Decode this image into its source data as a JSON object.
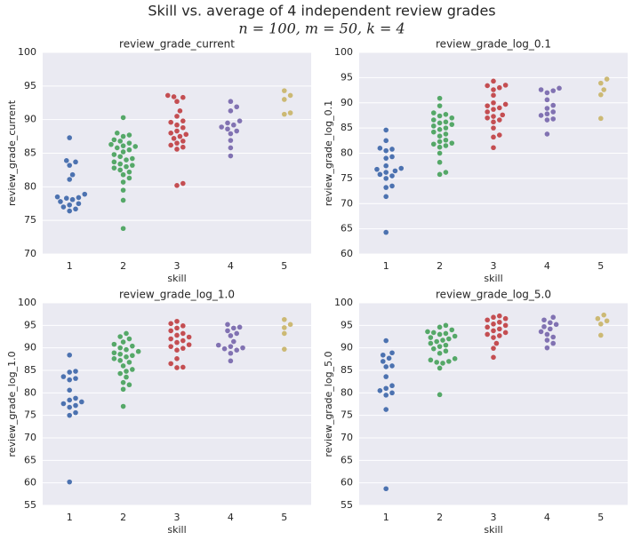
{
  "suptitle": "Skill vs. average of 4 independent review grades",
  "subtitle": "n = 100, m = 50, k = 4",
  "chart_data": [
    {
      "type": "swarm",
      "title": "review_grade_current",
      "xlabel": "skill",
      "ylabel": "review_grade_current",
      "categories": [
        1,
        2,
        3,
        4,
        5
      ],
      "ylim": [
        70,
        100
      ],
      "yticks": [
        70,
        75,
        80,
        85,
        90,
        95,
        100
      ],
      "grid": true,
      "groups": [
        {
          "color": "#4c72b0",
          "values": [
            87.3,
            83.9,
            83.7,
            83.2,
            81.8,
            81.1,
            78.9,
            78.5,
            78.4,
            78.3,
            78.1,
            77.8,
            77.5,
            77.3,
            77.0,
            76.7,
            76.4
          ]
        },
        {
          "color": "#55a868",
          "values": [
            90.3,
            88.0,
            87.7,
            87.5,
            87.0,
            86.8,
            86.5,
            86.3,
            86.1,
            86.0,
            85.8,
            85.5,
            85.2,
            84.8,
            84.5,
            84.2,
            84.0,
            83.7,
            83.4,
            83.2,
            83.0,
            82.8,
            82.5,
            82.2,
            81.8,
            81.3,
            80.7,
            79.5,
            78.0,
            73.8
          ]
        },
        {
          "color": "#c44e52",
          "values": [
            93.6,
            93.4,
            93.3,
            92.7,
            91.3,
            90.5,
            89.8,
            89.6,
            89.2,
            88.8,
            88.3,
            88.0,
            87.8,
            87.5,
            87.2,
            86.8,
            86.5,
            86.2,
            85.9,
            85.6,
            80.5,
            80.2
          ]
        },
        {
          "color": "#8172b2",
          "values": [
            92.7,
            91.9,
            91.3,
            89.8,
            89.5,
            89.2,
            88.9,
            88.6,
            88.3,
            87.9,
            86.9,
            85.8,
            84.6
          ]
        },
        {
          "color": "#ccb974",
          "values": [
            94.3,
            93.6,
            93.0,
            91.0,
            90.8
          ]
        }
      ]
    },
    {
      "type": "swarm",
      "title": "review_grade_log_0.1",
      "xlabel": "skill",
      "ylabel": "review_grade_log_0.1",
      "categories": [
        1,
        2,
        3,
        4,
        5
      ],
      "ylim": [
        60,
        100
      ],
      "yticks": [
        60,
        65,
        70,
        75,
        80,
        85,
        90,
        95,
        100
      ],
      "grid": true,
      "groups": [
        {
          "color": "#4c72b0",
          "values": [
            84.6,
            82.5,
            81.0,
            80.8,
            80.5,
            79.3,
            79.0,
            77.5,
            77.0,
            76.8,
            76.5,
            76.2,
            75.8,
            75.5,
            75.0,
            73.5,
            73.2,
            71.4,
            64.3
          ]
        },
        {
          "color": "#55a868",
          "values": [
            90.9,
            89.4,
            88.0,
            87.7,
            87.4,
            87.0,
            86.6,
            86.2,
            86.0,
            85.7,
            85.4,
            85.0,
            84.7,
            84.2,
            83.8,
            83.4,
            82.6,
            82.3,
            82.0,
            81.8,
            81.5,
            81.2,
            80.0,
            78.2,
            76.2,
            75.8
          ]
        },
        {
          "color": "#c44e52",
          "values": [
            94.3,
            93.5,
            93.4,
            93.0,
            92.6,
            91.5,
            90.0,
            89.7,
            89.4,
            89.0,
            88.7,
            88.2,
            87.6,
            87.3,
            87.0,
            86.6,
            86.2,
            85.0,
            83.6,
            83.2,
            81.1
          ]
        },
        {
          "color": "#8172b2",
          "values": [
            92.9,
            92.6,
            92.4,
            92.0,
            90.6,
            89.5,
            88.9,
            88.2,
            87.8,
            87.5,
            86.8,
            86.6,
            83.8
          ]
        },
        {
          "color": "#ccb974",
          "values": [
            94.7,
            93.9,
            92.6,
            91.6,
            86.9
          ]
        }
      ]
    },
    {
      "type": "swarm",
      "title": "review_grade_log_1.0",
      "xlabel": "skill",
      "ylabel": "review_grade_log_1.0",
      "categories": [
        1,
        2,
        3,
        4,
        5
      ],
      "ylim": [
        55,
        100
      ],
      "yticks": [
        55,
        60,
        65,
        70,
        75,
        80,
        85,
        90,
        95,
        100
      ],
      "grid": true,
      "groups": [
        {
          "color": "#4c72b0",
          "values": [
            88.4,
            84.8,
            84.6,
            83.6,
            83.2,
            82.9,
            80.6,
            78.8,
            78.4,
            78.0,
            77.6,
            77.2,
            76.8,
            75.6,
            75.0,
            60.2
          ]
        },
        {
          "color": "#55a868",
          "values": [
            93.2,
            92.5,
            92.0,
            91.3,
            90.8,
            90.4,
            90.0,
            89.6,
            89.2,
            88.9,
            88.6,
            88.3,
            88.0,
            87.6,
            87.2,
            86.8,
            86.0,
            85.2,
            84.8,
            84.3,
            83.5,
            82.3,
            81.8,
            80.8,
            77.0
          ]
        },
        {
          "color": "#c44e52",
          "values": [
            95.9,
            95.4,
            94.9,
            94.4,
            93.8,
            93.2,
            92.8,
            92.4,
            92.0,
            91.6,
            91.2,
            90.7,
            90.3,
            89.9,
            89.5,
            87.6,
            86.5,
            85.7,
            85.6
          ]
        },
        {
          "color": "#8172b2",
          "values": [
            95.2,
            94.6,
            94.4,
            93.8,
            93.2,
            92.7,
            91.4,
            90.6,
            90.3,
            90.0,
            89.8,
            89.5,
            88.8,
            87.1
          ]
        },
        {
          "color": "#ccb974",
          "values": [
            96.3,
            95.2,
            94.5,
            93.2,
            89.7
          ]
        }
      ]
    },
    {
      "type": "swarm",
      "title": "review_grade_log_5.0",
      "xlabel": "skill",
      "ylabel": "review_grade_log_5.0",
      "categories": [
        1,
        2,
        3,
        4,
        5
      ],
      "ylim": [
        55,
        100
      ],
      "yticks": [
        55,
        60,
        65,
        70,
        75,
        80,
        85,
        90,
        95,
        100
      ],
      "grid": true,
      "groups": [
        {
          "color": "#4c72b0",
          "values": [
            91.6,
            88.9,
            88.4,
            87.7,
            87.0,
            86.0,
            85.8,
            83.6,
            81.6,
            81.0,
            80.5,
            80.0,
            79.5,
            76.3,
            58.7
          ]
        },
        {
          "color": "#55a868",
          "values": [
            95.0,
            94.6,
            94.0,
            93.6,
            93.4,
            93.2,
            93.0,
            92.6,
            92.3,
            92.0,
            91.7,
            91.4,
            91.0,
            90.6,
            90.3,
            89.8,
            89.3,
            88.8,
            87.6,
            87.3,
            87.0,
            86.8,
            86.6,
            85.5,
            79.6
          ]
        },
        {
          "color": "#c44e52",
          "values": [
            97.1,
            96.8,
            96.5,
            96.2,
            95.7,
            95.3,
            95.0,
            94.6,
            94.2,
            93.8,
            93.4,
            93.0,
            92.7,
            92.3,
            91.0,
            89.9,
            87.9
          ]
        },
        {
          "color": "#8172b2",
          "values": [
            96.8,
            96.2,
            95.6,
            95.2,
            94.7,
            94.2,
            93.6,
            93.0,
            92.4,
            91.7,
            91.0,
            90.0
          ]
        },
        {
          "color": "#ccb974",
          "values": [
            97.3,
            96.5,
            96.0,
            95.3,
            92.8
          ]
        }
      ]
    }
  ]
}
